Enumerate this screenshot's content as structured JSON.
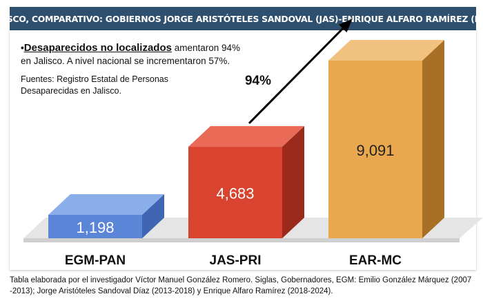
{
  "title": "JALISCO, COMPARATIVO: GOBIERNOS JORGE ARISTÓTELES SANDOVAL (JAS)-ENRIQUE ALFARO RAMÍREZ (EAR)",
  "note": {
    "bullet": "•",
    "lead": "Desaparecidos no localizados",
    "rest": " amentaron 94% en Jalisco. A nivel nacional se incrementaron 57%."
  },
  "source": "Fuentes: Registro Estatal de Personas Desaparecidas en Jalisco.",
  "footer": "Tabla elaborada por el investigador Víctor Manuel González Romero. Siglas, Gobernadores, EGM: Emilio González Márquez (2007 -2013); Jorge Aristóteles Sandoval Díaz (2013-2018) y Enrique Alfaro Ramírez (2018-2024).",
  "chart_data": {
    "type": "bar",
    "categories": [
      "EGM-PAN",
      "JAS-PRI",
      "EAR-MC"
    ],
    "values": [
      1198,
      4683,
      9091
    ],
    "value_labels": [
      "1,198",
      "4,683",
      "9,091"
    ],
    "annotation": "94%",
    "colors": {
      "front": [
        "#5b86d8",
        "#d9432f",
        "#eaa84e"
      ],
      "top": [
        "#8aaeea",
        "#e86a57",
        "#f1c27f"
      ],
      "side": [
        "#3f65b3",
        "#9c2a1c",
        "#a86f26"
      ],
      "value_text": [
        "#ffffff",
        "#ffffff",
        "#222222"
      ]
    }
  }
}
